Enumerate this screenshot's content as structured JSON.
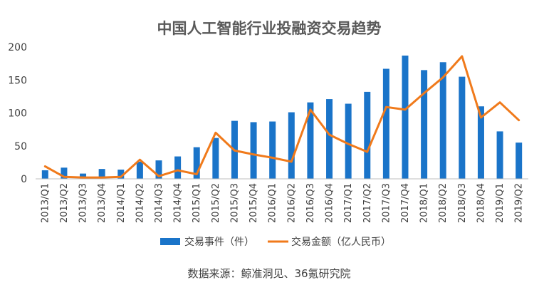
{
  "chart_data": {
    "type": "bar",
    "title": "中国人工智能行业投融资交易趋势",
    "categories": [
      "2013/Q1",
      "2013/Q2",
      "2013/Q3",
      "2013/Q4",
      "2014/Q1",
      "2014/Q2",
      "2014/Q3",
      "2014/Q4",
      "2015/Q1",
      "2015/Q2",
      "2015/Q3",
      "2015/Q4",
      "2016/Q1",
      "2016/Q2",
      "2016/Q3",
      "2016/Q4",
      "2017/Q1",
      "2017/Q2",
      "2017/Q3",
      "2017/Q4",
      "2018/Q1",
      "2018/Q2",
      "2018/Q3",
      "2018/Q4",
      "2019/Q1",
      "2019/Q2"
    ],
    "yticks": [
      "0",
      "50",
      "100",
      "150",
      "200"
    ],
    "ylim": [
      0,
      200
    ],
    "grid": false,
    "legend_position": "bottom",
    "series": [
      {
        "name": "交易事件（件）",
        "type": "bar",
        "color": "#1a74c9",
        "values": [
          13,
          17,
          8,
          15,
          14,
          26,
          28,
          34,
          48,
          62,
          88,
          86,
          87,
          101,
          116,
          121,
          114,
          132,
          167,
          187,
          165,
          177,
          155,
          110,
          72,
          55
        ]
      },
      {
        "name": "交易金额（亿人民币）",
        "type": "line",
        "color": "#f07a1b",
        "values": [
          19,
          3,
          2,
          2,
          3,
          29,
          4,
          13,
          7,
          70,
          43,
          37,
          32,
          26,
          105,
          67,
          53,
          41,
          109,
          105,
          130,
          154,
          186,
          93,
          116,
          89
        ]
      }
    ],
    "source": "数据来源：鲸准洞见、36氪研究院"
  }
}
